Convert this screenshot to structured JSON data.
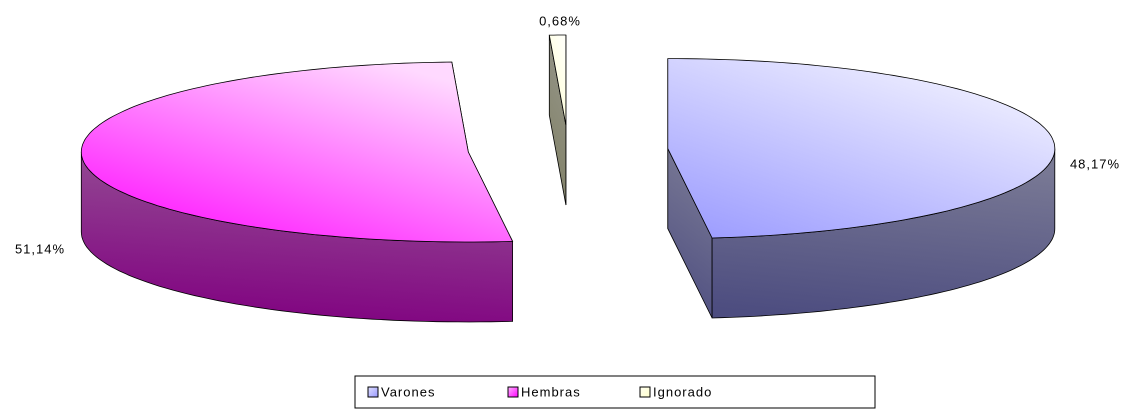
{
  "chart_data": {
    "type": "pie3d",
    "categories": [
      "Varones",
      "Hembras",
      "Ignorado"
    ],
    "values": [
      48.17,
      51.14,
      0.68
    ],
    "value_labels": [
      "48,17%",
      "51,14%",
      "0,68%"
    ],
    "colors": [
      "#9999ff",
      "#ff00ff",
      "#ffffcc"
    ],
    "legend": "bottom"
  }
}
